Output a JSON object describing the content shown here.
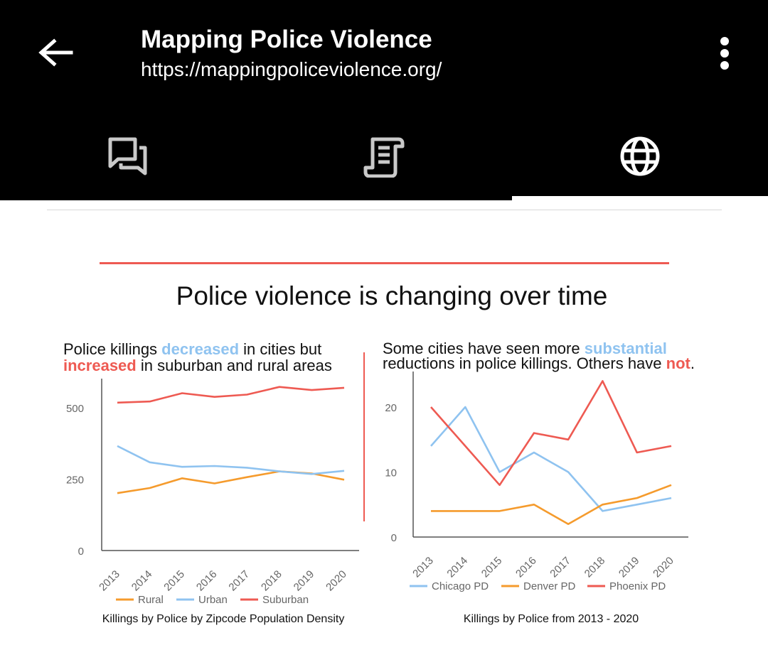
{
  "header": {
    "title": "Mapping Police Violence",
    "url": "https://mappingpoliceviolence.org/"
  },
  "tabs": [
    {
      "icon": "forum-icon"
    },
    {
      "icon": "document-icon"
    },
    {
      "icon": "globe-icon",
      "active": true
    }
  ],
  "heading": "Police violence is changing over time",
  "left": {
    "subtitle_a": "Police killings ",
    "subtitle_hl1": "decreased",
    "subtitle_b": " in cities but",
    "subtitle_hl2": "increased",
    "subtitle_c": " in suburban and rural areas",
    "caption": "Killings by Police by Zipcode Population Density"
  },
  "right": {
    "subtitle_a": "Some cities have seen more ",
    "subtitle_hl1": "substantial",
    "subtitle_b": "reductions in police killings. Others have ",
    "subtitle_hl2": "not",
    "subtitle_c": ".",
    "caption": "Killings by Police from 2013 - 2020"
  },
  "colors": {
    "red": "#ee5a52",
    "blue": "#8fc3f0",
    "orange": "#f59b2d"
  },
  "chart_data": [
    {
      "type": "line",
      "title": "Killings by Police by Zipcode Population Density",
      "categories": [
        "2013",
        "2014",
        "2015",
        "2016",
        "2017",
        "2018",
        "2019",
        "2020"
      ],
      "ylim": [
        0,
        600
      ],
      "yticks": [
        0,
        250,
        500
      ],
      "series": [
        {
          "name": "Rural",
          "color": "#f59b2d",
          "values": [
            201,
            219,
            253,
            235,
            257,
            277,
            270,
            248
          ]
        },
        {
          "name": "Urban",
          "color": "#8fc3f0",
          "values": [
            366,
            309,
            293,
            296,
            290,
            277,
            268,
            279
          ]
        },
        {
          "name": "Suburban",
          "color": "#ee5a52",
          "values": [
            518,
            522,
            551,
            538,
            546,
            573,
            562,
            570
          ]
        }
      ],
      "legend": "bottom",
      "grid": false
    },
    {
      "type": "line",
      "title": "Killings by Police from 2013 - 2020",
      "categories": [
        "2013",
        "2014",
        "2015",
        "2016",
        "2017",
        "2018",
        "2019",
        "2020"
      ],
      "ylim": [
        0,
        25
      ],
      "yticks": [
        0,
        10,
        20
      ],
      "series": [
        {
          "name": "Chicago PD",
          "color": "#8fc3f0",
          "values": [
            14,
            20,
            10,
            13,
            10,
            4,
            5,
            6
          ]
        },
        {
          "name": "Denver PD",
          "color": "#f59b2d",
          "values": [
            4,
            4,
            4,
            5,
            2,
            5,
            6,
            8
          ]
        },
        {
          "name": "Phoenix PD",
          "color": "#ee5a52",
          "values": [
            20,
            14,
            8,
            16,
            15,
            24,
            13,
            14
          ]
        }
      ],
      "legend": "bottom",
      "grid": false
    }
  ]
}
